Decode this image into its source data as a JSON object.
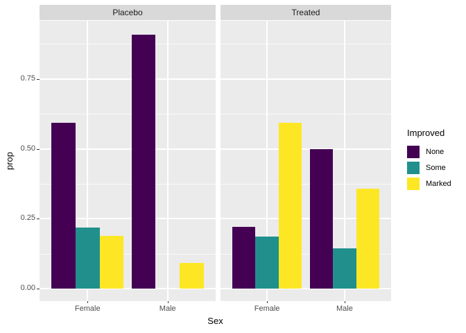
{
  "chart_data": {
    "type": "bar",
    "title": "",
    "xlabel": "Sex",
    "ylabel": "prop",
    "facet_labels": [
      "Placebo",
      "Treated"
    ],
    "categories": [
      "Female",
      "Male"
    ],
    "series": [
      {
        "name": "None",
        "color": "#440154",
        "values": {
          "Placebo": [
            0.594,
            0.909
          ],
          "Treated": [
            0.222,
            0.5
          ]
        }
      },
      {
        "name": "Some",
        "color": "#21908C",
        "values": {
          "Placebo": [
            0.219,
            0.0
          ],
          "Treated": [
            0.185,
            0.143
          ]
        }
      },
      {
        "name": "Marked",
        "color": "#FDE725",
        "values": {
          "Placebo": [
            0.188,
            0.091
          ],
          "Treated": [
            0.593,
            0.357
          ]
        }
      }
    ],
    "y_ticks": [
      0,
      0.25,
      0.5,
      0.75
    ],
    "y_tick_labels": [
      "0.00",
      "0.25",
      "0.50",
      "0.75"
    ],
    "ylim": [
      0,
      0.955
    ],
    "grid": true,
    "legend_title": "Improved",
    "legend_position": "right",
    "theme": {
      "panel_bg": "#EBEBEB",
      "strip_bg": "#D9D9D9",
      "grid_major_color": "#FFFFFF",
      "grid_minor_color": "rgba(255,255,255,0.7)",
      "tick_label_color": "#4D4D4D",
      "strip_text_color": "#1A1A1A",
      "axis_title_color": "#000000",
      "tick_mark_color": "#333333"
    }
  }
}
